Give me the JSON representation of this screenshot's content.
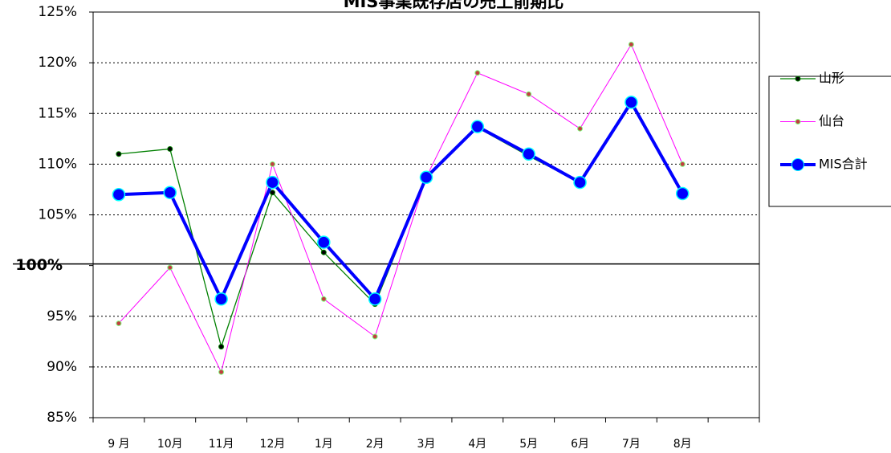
{
  "chart_data": {
    "type": "line",
    "title": "MIS事業既存店の売上前期比",
    "categories": [
      "9 月",
      "10月",
      "11月",
      "12月",
      "1月",
      "2月",
      "3月",
      "4月",
      "5月",
      "6月",
      "7月",
      "8月",
      null
    ],
    "series": [
      {
        "name": "山形",
        "color": "#008000",
        "values": [
          111.0,
          111.5,
          92.0,
          107.2,
          101.3,
          96.2,
          108.7,
          113.6,
          110.8,
          108.2,
          116.3,
          107.1,
          null
        ]
      },
      {
        "name": "仙台",
        "color": "#ff00ff",
        "values": [
          94.3,
          99.8,
          89.5,
          110.0,
          96.7,
          93.0,
          108.7,
          119.0,
          116.9,
          113.5,
          121.8,
          110.0,
          null
        ]
      },
      {
        "name": "MIS合計",
        "color": "#0000ff",
        "values": [
          107.0,
          107.2,
          96.7,
          108.2,
          102.3,
          96.7,
          108.7,
          113.7,
          111.0,
          108.2,
          116.1,
          107.1,
          null
        ]
      }
    ],
    "ylim": [
      85,
      125
    ],
    "yticks": [
      {
        "value": 85,
        "label": "85%"
      },
      {
        "value": 90,
        "label": "90%"
      },
      {
        "value": 95,
        "label": "95%"
      },
      {
        "value": 100,
        "label": "100%"
      },
      {
        "value": 105,
        "label": "105%"
      },
      {
        "value": 110,
        "label": "110%"
      },
      {
        "value": 115,
        "label": "115%"
      },
      {
        "value": 120,
        "label": "120%"
      },
      {
        "value": 125,
        "label": "125%"
      }
    ],
    "reference_line": 100,
    "grid": true,
    "legend": "right"
  }
}
